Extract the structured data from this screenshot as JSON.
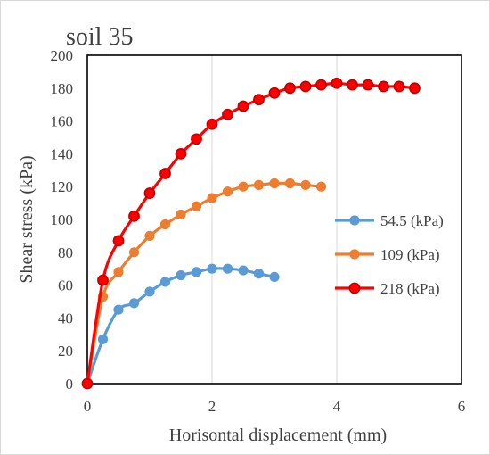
{
  "chart_data": {
    "type": "line",
    "title": "soil 35",
    "xlabel": "Horisontal displacement (mm)",
    "ylabel": "Shear stress (kPa)",
    "xlim": [
      0,
      6
    ],
    "ylim": [
      0,
      200
    ],
    "xticks": [
      0,
      2,
      4,
      6
    ],
    "yticks": [
      0,
      20,
      40,
      60,
      80,
      100,
      120,
      140,
      160,
      180,
      200
    ],
    "grid": "vertical",
    "legend_position": "right",
    "series": [
      {
        "name": "54.5 (kPa)",
        "color": "#5b9bd5",
        "x": [
          0,
          0.25,
          0.5,
          0.75,
          1.0,
          1.25,
          1.5,
          1.75,
          2.0,
          2.25,
          2.5,
          2.75,
          3.0
        ],
        "y": [
          0,
          27,
          45,
          49,
          56,
          62,
          66,
          68,
          70,
          70,
          69,
          67,
          65
        ]
      },
      {
        "name": "109 (kPa)",
        "color": "#ed7d31",
        "x": [
          0,
          0.25,
          0.5,
          0.75,
          1.0,
          1.25,
          1.5,
          1.75,
          2.0,
          2.25,
          2.5,
          2.75,
          3.0,
          3.25,
          3.5,
          3.75
        ],
        "y": [
          0,
          53,
          68,
          80,
          90,
          97,
          103,
          108,
          113,
          117,
          120,
          121,
          122,
          122,
          121,
          120
        ]
      },
      {
        "name": "218 (kPa)",
        "color": "#ff0000",
        "marker_edge": "#c00000",
        "x": [
          0,
          0.25,
          0.5,
          0.75,
          1.0,
          1.25,
          1.5,
          1.75,
          2.0,
          2.25,
          2.5,
          2.75,
          3.0,
          3.25,
          3.5,
          3.75,
          4.0,
          4.25,
          4.5,
          4.75,
          5.0,
          5.25
        ],
        "y": [
          0,
          63,
          87,
          102,
          116,
          128,
          140,
          149,
          158,
          164,
          169,
          173,
          177,
          180,
          181,
          182,
          183,
          182,
          182,
          181,
          181,
          180
        ]
      }
    ]
  }
}
